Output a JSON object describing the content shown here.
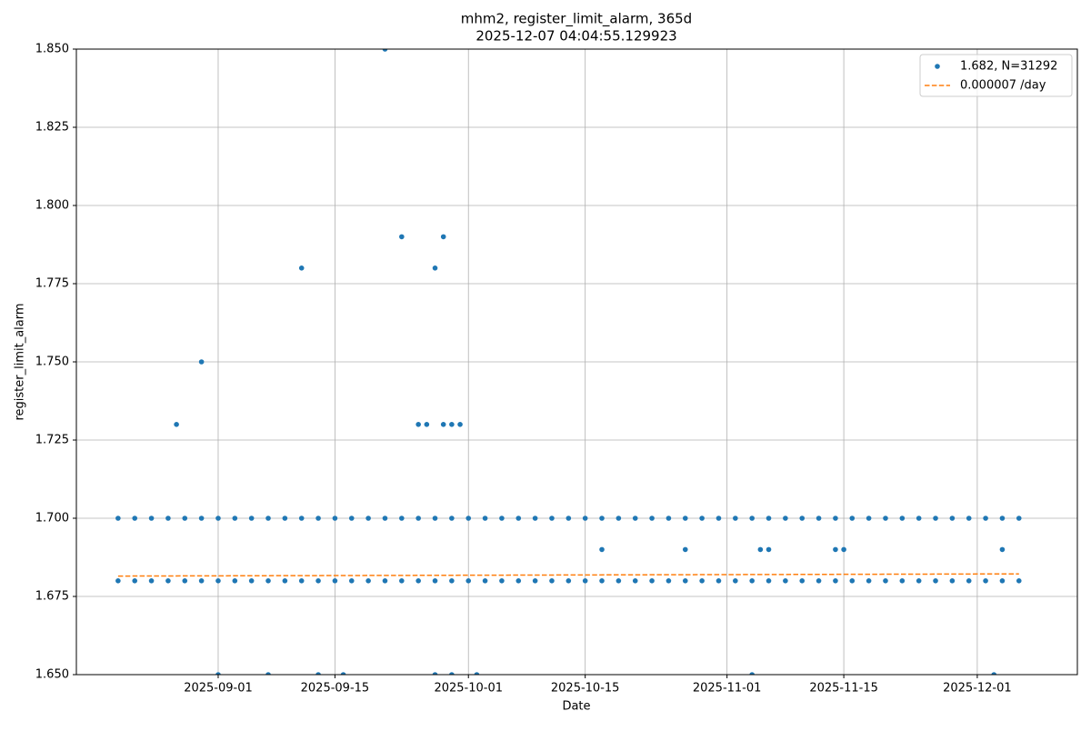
{
  "chart_data": {
    "type": "scatter",
    "title": "mhm2, register_limit_alarm, 365d",
    "subtitle": "2025-12-07 04:04:55.129923",
    "x_label": "Date",
    "y_label": "register_limit_alarm",
    "xlim": [
      "2025-08-15",
      "2025-12-13"
    ],
    "xticks": [
      "2025-09-01",
      "2025-09-15",
      "2025-10-01",
      "2025-10-15",
      "2025-11-01",
      "2025-11-15",
      "2025-12-01"
    ],
    "ylim": [
      1.65,
      1.85
    ],
    "yticks": [
      {
        "value": 1.65,
        "label": "1.650"
      },
      {
        "value": 1.675,
        "label": "1.675"
      },
      {
        "value": 1.7,
        "label": "1.700"
      },
      {
        "value": 1.725,
        "label": "1.725"
      },
      {
        "value": 1.75,
        "label": "1.750"
      },
      {
        "value": 1.775,
        "label": "1.775"
      },
      {
        "value": 1.8,
        "label": "1.800"
      },
      {
        "value": 1.825,
        "label": "1.825"
      },
      {
        "value": 1.85,
        "label": "1.850"
      }
    ],
    "grid": true,
    "legend": "upper right",
    "series": [
      {
        "name": "1.682, N=31292",
        "kind": "scatter",
        "color": "#1f77b4",
        "x": [
          "2025-08-20",
          "2025-08-22",
          "2025-08-24",
          "2025-08-26",
          "2025-08-28",
          "2025-08-30",
          "2025-09-01",
          "2025-09-03",
          "2025-09-05",
          "2025-09-07",
          "2025-09-09",
          "2025-09-11",
          "2025-09-13",
          "2025-09-15",
          "2025-09-17",
          "2025-09-19",
          "2025-09-21",
          "2025-09-23",
          "2025-09-25",
          "2025-09-27",
          "2025-09-29",
          "2025-10-01",
          "2025-10-03",
          "2025-10-05",
          "2025-10-07",
          "2025-10-09",
          "2025-10-11",
          "2025-10-13",
          "2025-10-15",
          "2025-10-17",
          "2025-10-19",
          "2025-10-21",
          "2025-10-23",
          "2025-10-25",
          "2025-10-27",
          "2025-10-29",
          "2025-10-31",
          "2025-11-02",
          "2025-11-04",
          "2025-11-06",
          "2025-11-08",
          "2025-11-10",
          "2025-11-12",
          "2025-11-14",
          "2025-11-16",
          "2025-11-18",
          "2025-11-20",
          "2025-11-22",
          "2025-11-24",
          "2025-11-26",
          "2025-11-28",
          "2025-11-30",
          "2025-12-02",
          "2025-12-04",
          "2025-12-06",
          "2025-08-20",
          "2025-08-22",
          "2025-08-24",
          "2025-08-26",
          "2025-08-28",
          "2025-08-30",
          "2025-09-01",
          "2025-09-03",
          "2025-09-05",
          "2025-09-07",
          "2025-09-09",
          "2025-09-11",
          "2025-09-13",
          "2025-09-15",
          "2025-09-17",
          "2025-09-19",
          "2025-09-21",
          "2025-09-23",
          "2025-09-25",
          "2025-09-27",
          "2025-09-29",
          "2025-10-01",
          "2025-10-03",
          "2025-10-05",
          "2025-10-07",
          "2025-10-09",
          "2025-10-11",
          "2025-10-13",
          "2025-10-15",
          "2025-10-17",
          "2025-10-19",
          "2025-10-21",
          "2025-10-23",
          "2025-10-25",
          "2025-10-27",
          "2025-10-29",
          "2025-10-31",
          "2025-11-02",
          "2025-11-04",
          "2025-11-06",
          "2025-11-08",
          "2025-11-10",
          "2025-11-12",
          "2025-11-14",
          "2025-11-16",
          "2025-11-18",
          "2025-11-20",
          "2025-11-22",
          "2025-11-24",
          "2025-11-26",
          "2025-11-28",
          "2025-11-30",
          "2025-12-02",
          "2025-12-04",
          "2025-12-06",
          "2025-08-27",
          "2025-08-30",
          "2025-09-11",
          "2025-09-21",
          "2025-09-23",
          "2025-09-25",
          "2025-09-26",
          "2025-09-27",
          "2025-09-28",
          "2025-09-28",
          "2025-09-29",
          "2025-09-30",
          "2025-10-17",
          "2025-10-27",
          "2025-11-05",
          "2025-11-06",
          "2025-11-14",
          "2025-11-15",
          "2025-12-04",
          "2025-09-01",
          "2025-09-07",
          "2025-09-13",
          "2025-09-16",
          "2025-09-27",
          "2025-09-29",
          "2025-10-02",
          "2025-11-04",
          "2025-12-03"
        ],
        "values": [
          1.7,
          1.7,
          1.7,
          1.7,
          1.7,
          1.7,
          1.7,
          1.7,
          1.7,
          1.7,
          1.7,
          1.7,
          1.7,
          1.7,
          1.7,
          1.7,
          1.7,
          1.7,
          1.7,
          1.7,
          1.7,
          1.7,
          1.7,
          1.7,
          1.7,
          1.7,
          1.7,
          1.7,
          1.7,
          1.7,
          1.7,
          1.7,
          1.7,
          1.7,
          1.7,
          1.7,
          1.7,
          1.7,
          1.7,
          1.7,
          1.7,
          1.7,
          1.7,
          1.7,
          1.7,
          1.7,
          1.7,
          1.7,
          1.7,
          1.7,
          1.7,
          1.7,
          1.7,
          1.7,
          1.7,
          1.68,
          1.68,
          1.68,
          1.68,
          1.68,
          1.68,
          1.68,
          1.68,
          1.68,
          1.68,
          1.68,
          1.68,
          1.68,
          1.68,
          1.68,
          1.68,
          1.68,
          1.68,
          1.68,
          1.68,
          1.68,
          1.68,
          1.68,
          1.68,
          1.68,
          1.68,
          1.68,
          1.68,
          1.68,
          1.68,
          1.68,
          1.68,
          1.68,
          1.68,
          1.68,
          1.68,
          1.68,
          1.68,
          1.68,
          1.68,
          1.68,
          1.68,
          1.68,
          1.68,
          1.68,
          1.68,
          1.68,
          1.68,
          1.68,
          1.68,
          1.68,
          1.68,
          1.68,
          1.68,
          1.68,
          1.73,
          1.75,
          1.78,
          1.85,
          1.79,
          1.73,
          1.73,
          1.78,
          1.73,
          1.79,
          1.73,
          1.73,
          1.69,
          1.69,
          1.69,
          1.69,
          1.69,
          1.69,
          1.69,
          1.65,
          1.65,
          1.65,
          1.65,
          1.65,
          1.65,
          1.65,
          1.65,
          1.65
        ]
      },
      {
        "name": "0.000007 /day",
        "kind": "line",
        "dashed": true,
        "color": "#ff7f0e",
        "x": [
          "2025-08-20",
          "2025-12-06"
        ],
        "values": [
          1.6815,
          1.6822
        ]
      }
    ]
  }
}
